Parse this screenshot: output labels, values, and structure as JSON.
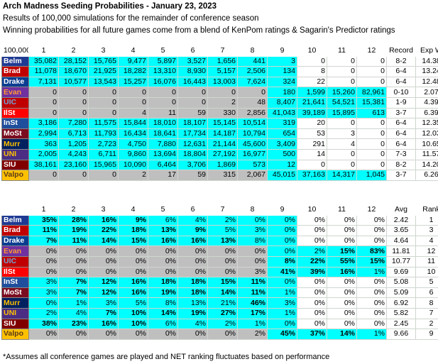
{
  "title": "Arch Madness Seeding Probabilities - January 23, 2023",
  "subtitle1": "Results of 100,000 simulations for the remainder of conference season",
  "subtitle2": "Winning probabilities for all future games come from a blend of KenPom ratings & Sagarin's Predictor ratings",
  "footnote": "*Assumes all conference games are played and NET ranking fluctuates based on performance",
  "colors": {
    "cyan": "#00ffff",
    "gray": "#bfbfbf"
  },
  "team_styles": [
    {
      "name": "Belm",
      "bg": "#1f3a93",
      "fg": "#ffffff"
    },
    {
      "name": "Brad",
      "bg": "#c00000",
      "fg": "#ffffff"
    },
    {
      "name": "Drake",
      "bg": "#0b3d91",
      "fg": "#ffffff"
    },
    {
      "name": "Evan",
      "bg": "#7030a0",
      "fg": "#ff9933"
    },
    {
      "name": "UIC",
      "bg": "#c00000",
      "fg": "#6fa8dc"
    },
    {
      "name": "IlSt",
      "bg": "#ff0000",
      "fg": "#ffffff"
    },
    {
      "name": "InSt",
      "bg": "#1f4e9c",
      "fg": "#ffffff"
    },
    {
      "name": "MoSt",
      "bg": "#7b0c20",
      "fg": "#ffffff"
    },
    {
      "name": "Murr",
      "bg": "#002060",
      "fg": "#ffc000"
    },
    {
      "name": "UNI",
      "bg": "#4b2e83",
      "fg": "#ffc000"
    },
    {
      "name": "SIU",
      "bg": "#800000",
      "fg": "#ffffff"
    },
    {
      "name": "Valpo",
      "bg": "#ffc000",
      "fg": "#5a3a1a"
    }
  ],
  "table1": {
    "corner": "100,000",
    "columns": [
      "1",
      "2",
      "3",
      "4",
      "5",
      "6",
      "7",
      "8",
      "9",
      "10",
      "11",
      "12",
      "Record",
      "Exp W"
    ],
    "rows": [
      {
        "team": "Belm",
        "values": [
          "35,082",
          "28,152",
          "15,765",
          "9,477",
          "5,897",
          "3,527",
          "1,656",
          "441",
          "3",
          "0",
          "0",
          "0"
        ],
        "record": "8-2",
        "expw": "14.38"
      },
      {
        "team": "Brad",
        "values": [
          "11,078",
          "18,670",
          "21,925",
          "18,282",
          "13,310",
          "8,930",
          "5,157",
          "2,506",
          "134",
          "8",
          "0",
          "0"
        ],
        "record": "6-4",
        "expw": "13.24"
      },
      {
        "team": "Drake",
        "values": [
          "7,131",
          "10,577",
          "13,543",
          "15,257",
          "16,076",
          "16,443",
          "13,003",
          "7,624",
          "324",
          "22",
          "0",
          "0"
        ],
        "record": "6-4",
        "expw": "12.48"
      },
      {
        "team": "Evan",
        "values": [
          "0",
          "0",
          "0",
          "0",
          "0",
          "0",
          "0",
          "0",
          "180",
          "1,599",
          "15,260",
          "82,961"
        ],
        "record": "0-10",
        "expw": "2.07"
      },
      {
        "team": "UIC",
        "values": [
          "0",
          "0",
          "0",
          "0",
          "0",
          "0",
          "2",
          "48",
          "8,407",
          "21,641",
          "54,521",
          "15,381"
        ],
        "record": "1-9",
        "expw": "4.39"
      },
      {
        "team": "IlSt",
        "values": [
          "0",
          "0",
          "0",
          "4",
          "11",
          "59",
          "330",
          "2,856",
          "41,043",
          "39,189",
          "15,895",
          "613"
        ],
        "record": "3-7",
        "expw": "6.39"
      },
      {
        "team": "InSt",
        "values": [
          "3,186",
          "7,280",
          "11,575",
          "15,844",
          "18,010",
          "18,107",
          "15,145",
          "10,514",
          "319",
          "20",
          "0",
          "0"
        ],
        "record": "6-4",
        "expw": "12.35"
      },
      {
        "team": "MoSt",
        "values": [
          "2,994",
          "6,713",
          "11,793",
          "16,434",
          "18,641",
          "17,734",
          "14,187",
          "10,794",
          "654",
          "53",
          "3",
          "0"
        ],
        "record": "6-4",
        "expw": "12.03"
      },
      {
        "team": "Murr",
        "values": [
          "363",
          "1,205",
          "2,723",
          "4,750",
          "7,880",
          "12,631",
          "21,144",
          "45,600",
          "3,409",
          "291",
          "4",
          "0"
        ],
        "record": "6-4",
        "expw": "10.65"
      },
      {
        "team": "UNI",
        "values": [
          "2,005",
          "4,243",
          "6,711",
          "9,860",
          "13,694",
          "18,804",
          "27,192",
          "16,977",
          "500",
          "14",
          "0",
          "0"
        ],
        "record": "7-3",
        "expw": "11.57"
      },
      {
        "team": "SIU",
        "values": [
          "38,161",
          "23,160",
          "15,965",
          "10,090",
          "6,464",
          "3,706",
          "1,869",
          "573",
          "12",
          "0",
          "0",
          "0"
        ],
        "record": "8-2",
        "expw": "14.20"
      },
      {
        "team": "Valpo",
        "values": [
          "0",
          "0",
          "0",
          "2",
          "17",
          "59",
          "315",
          "2,067",
          "45,015",
          "37,163",
          "14,317",
          "1,045"
        ],
        "record": "3-7",
        "expw": "6.26"
      }
    ]
  },
  "table2": {
    "columns": [
      "1",
      "2",
      "3",
      "4",
      "5",
      "6",
      "7",
      "8",
      "9",
      "10",
      "11",
      "12",
      "Avg",
      "Rank"
    ],
    "rows": [
      {
        "team": "Belm",
        "values": [
          "35%",
          "28%",
          "16%",
          "9%",
          "6%",
          "4%",
          "2%",
          "0%",
          "0%",
          "0%",
          "0%",
          "0%"
        ],
        "avg": "2.42",
        "rank": "1"
      },
      {
        "team": "Brad",
        "values": [
          "11%",
          "19%",
          "22%",
          "18%",
          "13%",
          "9%",
          "5%",
          "3%",
          "0%",
          "0%",
          "0%",
          "0%"
        ],
        "avg": "3.65",
        "rank": "3"
      },
      {
        "team": "Drake",
        "values": [
          "7%",
          "11%",
          "14%",
          "15%",
          "16%",
          "16%",
          "13%",
          "8%",
          "0%",
          "0%",
          "0%",
          "0%"
        ],
        "avg": "4.64",
        "rank": "4"
      },
      {
        "team": "Evan",
        "values": [
          "0%",
          "0%",
          "0%",
          "0%",
          "0%",
          "0%",
          "0%",
          "0%",
          "0%",
          "2%",
          "15%",
          "83%"
        ],
        "avg": "11.81",
        "rank": "12"
      },
      {
        "team": "UIC",
        "values": [
          "0%",
          "0%",
          "0%",
          "0%",
          "0%",
          "0%",
          "0%",
          "0%",
          "8%",
          "22%",
          "55%",
          "15%"
        ],
        "avg": "10.77",
        "rank": "11"
      },
      {
        "team": "IlSt",
        "values": [
          "0%",
          "0%",
          "0%",
          "0%",
          "0%",
          "0%",
          "0%",
          "3%",
          "41%",
          "39%",
          "16%",
          "1%"
        ],
        "avg": "9.69",
        "rank": "10"
      },
      {
        "team": "InSt",
        "values": [
          "3%",
          "7%",
          "12%",
          "16%",
          "18%",
          "18%",
          "15%",
          "11%",
          "0%",
          "0%",
          "0%",
          "0%"
        ],
        "avg": "5.08",
        "rank": "5"
      },
      {
        "team": "MoSt",
        "values": [
          "3%",
          "7%",
          "12%",
          "16%",
          "19%",
          "18%",
          "14%",
          "11%",
          "1%",
          "0%",
          "0%",
          "0%"
        ],
        "avg": "5.09",
        "rank": "6"
      },
      {
        "team": "Murr",
        "values": [
          "0%",
          "1%",
          "3%",
          "5%",
          "8%",
          "13%",
          "21%",
          "46%",
          "3%",
          "0%",
          "0%",
          "0%"
        ],
        "avg": "6.92",
        "rank": "8"
      },
      {
        "team": "UNI",
        "values": [
          "2%",
          "4%",
          "7%",
          "10%",
          "14%",
          "19%",
          "27%",
          "17%",
          "1%",
          "0%",
          "0%",
          "0%"
        ],
        "avg": "5.82",
        "rank": "7"
      },
      {
        "team": "SIU",
        "values": [
          "38%",
          "23%",
          "16%",
          "10%",
          "6%",
          "4%",
          "2%",
          "1%",
          "0%",
          "0%",
          "0%",
          "0%"
        ],
        "avg": "2.45",
        "rank": "2"
      },
      {
        "team": "Valpo",
        "values": [
          "0%",
          "0%",
          "0%",
          "0%",
          "0%",
          "0%",
          "0%",
          "2%",
          "45%",
          "37%",
          "14%",
          "1%"
        ],
        "avg": "9.66",
        "rank": "9"
      }
    ]
  },
  "table1_fill": [
    "CCCCCCCCCWWW",
    "CCCCCCCCCWWW",
    "CCCCCCCCCWWW",
    "GGGGGGGGCCCC",
    "GGGGGGGGCCCC",
    "GGGGGGGGCCCC",
    "CCCCCCCCCWWW",
    "CCCCCCCCCWWW",
    "CCCCCCCCCWWW",
    "CCCCCCCCCWWW",
    "CCCCCCCCCWWW",
    "GGGGGGGGCCCC"
  ],
  "table2_fill": [
    "CCCCCCCCCWWW",
    "CCCCCCCCCWWW",
    "CCCCCCCCCWWW",
    "GGGGGGGGCCCC",
    "GGGGGGGGCCCC",
    "GGGGGGGGCCCC",
    "CCCCCCCCCWWW",
    "CCCCCCCCCWWW",
    "CCCCCCCCCWWW",
    "CCCCCCCCCWWW",
    "CCCCCCCCCWWW",
    "GGGGGGGGCCCC"
  ],
  "table2_bold": [
    [
      0,
      1,
      2,
      3
    ],
    [
      0,
      1,
      2,
      3,
      4,
      5
    ],
    [
      0,
      1,
      2,
      3,
      4,
      5,
      6
    ],
    [
      10,
      11
    ],
    [
      8,
      9,
      10,
      11
    ],
    [
      8,
      9,
      10
    ],
    [
      1,
      2,
      3,
      4,
      5,
      6,
      7
    ],
    [
      1,
      2,
      3,
      4,
      5,
      6,
      7
    ],
    [
      7
    ],
    [
      2,
      3,
      4,
      5,
      6,
      7
    ],
    [
      0,
      1,
      2,
      3
    ],
    [
      8,
      9,
      10
    ]
  ]
}
